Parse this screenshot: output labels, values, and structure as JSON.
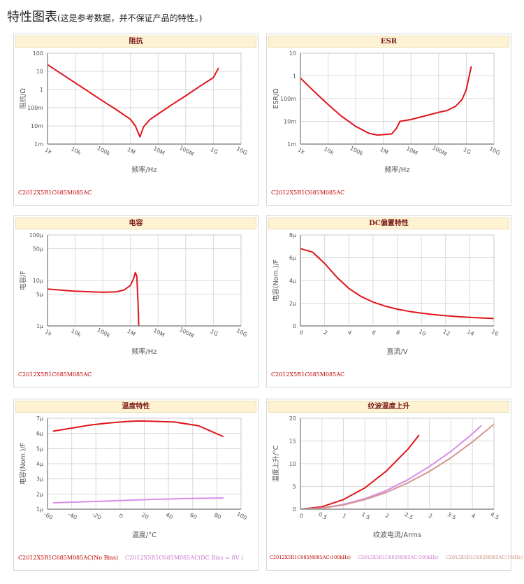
{
  "header": {
    "title": "特性图表",
    "subtitle": "(这是参考数据，并不保证产品的特性。)"
  },
  "colors": {
    "red": "#e0161c",
    "pink": "#d98ee6",
    "brown": "#d69590",
    "grid": "#d9d9d9",
    "header_bg": "#fdf2d2",
    "header_text": "#7a1a1a",
    "part_text": "#c00000"
  },
  "chart_data": [
    {
      "id": "impedance",
      "type": "line",
      "title": "阻抗",
      "xlabel": "频率/Hz",
      "ylabel": "阻抗/Ω",
      "xscale": "log",
      "yscale": "log",
      "xlim": [
        1000,
        10000000000
      ],
      "ylim": [
        0.001,
        100
      ],
      "xticks": [
        1000,
        10000,
        100000,
        1000000,
        10000000,
        100000000,
        1000000000,
        10000000000
      ],
      "xticklabels": [
        "1k",
        "10k",
        "100k",
        "1M",
        "10M",
        "100M",
        "1G",
        "10G"
      ],
      "yticks": [
        0.001,
        0.01,
        0.1,
        1,
        10,
        100
      ],
      "yticklabels": [
        "1m",
        "10m",
        "100m",
        "1",
        "10",
        "100"
      ],
      "grid": true,
      "legend": [
        {
          "label": "C2012X5R1C685M085AC",
          "color": "#c00000"
        }
      ],
      "series": [
        {
          "color": "#e0161c",
          "x": [
            1000,
            3000,
            10000,
            30000,
            100000,
            300000,
            1000000,
            1500000,
            2200000,
            3000000,
            5000000,
            10000000,
            30000000,
            100000000,
            300000000,
            1000000000,
            1500000000
          ],
          "y": [
            23.5,
            7.8,
            2.35,
            0.78,
            0.235,
            0.08,
            0.023,
            0.01,
            0.0025,
            0.009,
            0.022,
            0.045,
            0.14,
            0.45,
            1.4,
            4.5,
            14.5
          ]
        }
      ]
    },
    {
      "id": "esr",
      "type": "line",
      "title": "ESR",
      "xlabel": "频率/Hz",
      "ylabel": "ESR/Ω",
      "xscale": "log",
      "yscale": "log",
      "xlim": [
        1000,
        10000000000
      ],
      "ylim": [
        0.001,
        10
      ],
      "xticks": [
        1000,
        10000,
        100000,
        1000000,
        10000000,
        100000000,
        1000000000,
        10000000000
      ],
      "xticklabels": [
        "1k",
        "10k",
        "100k",
        "1M",
        "10M",
        "100M",
        "1G",
        "10G"
      ],
      "yticks": [
        0.001,
        0.01,
        0.1,
        1,
        10
      ],
      "yticklabels": [
        "1m",
        "10m",
        "100m",
        "1",
        "10"
      ],
      "grid": true,
      "legend": [
        {
          "label": "C2012X5R1C685M085AC",
          "color": "#c00000"
        }
      ],
      "series": [
        {
          "color": "#e0161c",
          "x": [
            1000,
            2000,
            5000,
            10000,
            30000,
            100000,
            300000,
            600000,
            1000000,
            2000000,
            3000000,
            4000000,
            10000000,
            30000000,
            100000000,
            200000000,
            400000000,
            700000000,
            1000000000,
            1500000000
          ],
          "y": [
            0.8,
            0.35,
            0.12,
            0.055,
            0.017,
            0.006,
            0.003,
            0.0025,
            0.0026,
            0.0028,
            0.005,
            0.01,
            0.012,
            0.017,
            0.025,
            0.03,
            0.045,
            0.09,
            0.25,
            2.5
          ]
        }
      ]
    },
    {
      "id": "capacitance",
      "type": "line",
      "title": "电容",
      "xlabel": "频率/Hz",
      "ylabel": "电容/F",
      "xscale": "log",
      "yscale": "log",
      "xlim": [
        1000,
        10000000000
      ],
      "ylim": [
        1e-06,
        0.0001
      ],
      "xticks": [
        1000,
        10000,
        100000,
        1000000,
        10000000,
        100000000,
        1000000000,
        10000000000
      ],
      "xticklabels": [
        "1k",
        "10k",
        "100k",
        "1M",
        "10M",
        "100M",
        "1G",
        "10G"
      ],
      "yticks": [
        1e-06,
        5e-06,
        1e-05,
        5e-05,
        0.0001
      ],
      "yticklabels": [
        "1μ",
        "5μ",
        "10μ",
        "50μ",
        "100μ"
      ],
      "grid": true,
      "legend": [
        {
          "label": "C2012X5R1C685M085AC",
          "color": "#c00000"
        }
      ],
      "series": [
        {
          "color": "#e0161c",
          "x": [
            1000,
            10000,
            100000,
            300000,
            600000,
            1000000,
            1300000,
            1500000,
            1700000,
            1900000,
            2000000
          ],
          "y": [
            6.5e-06,
            5.8e-06,
            5.5e-06,
            5.6e-06,
            6.2e-06,
            7.8e-06,
            1.1e-05,
            1.5e-05,
            1.25e-05,
            3e-06,
            1e-06
          ]
        }
      ]
    },
    {
      "id": "dc_bias",
      "type": "line",
      "title": "DC偏置特性",
      "xlabel": "直流/V",
      "ylabel": "电容(Nom.)/F",
      "xscale": "linear",
      "yscale": "linear",
      "xlim": [
        0,
        16
      ],
      "ylim": [
        0,
        8
      ],
      "xticks": [
        0,
        2,
        4,
        6,
        8,
        10,
        12,
        14,
        16
      ],
      "xticklabels": [
        "0",
        "2",
        "4",
        "6",
        "8",
        "10",
        "12",
        "14",
        "16"
      ],
      "yticks": [
        0,
        2,
        4,
        6,
        8
      ],
      "yticklabels": [
        "0",
        "2μ",
        "4μ",
        "6μ",
        "8μ"
      ],
      "grid": true,
      "legend": [
        {
          "label": "C2012X5R1C685M085AC",
          "color": "#c00000"
        }
      ],
      "series": [
        {
          "color": "#e0161c",
          "x": [
            0,
            1,
            2,
            3,
            4,
            5,
            6,
            7,
            8,
            9,
            10,
            11,
            12,
            13,
            14,
            15,
            16
          ],
          "y": [
            6.8,
            6.5,
            5.5,
            4.3,
            3.3,
            2.6,
            2.1,
            1.75,
            1.48,
            1.28,
            1.12,
            1.0,
            0.9,
            0.82,
            0.76,
            0.7,
            0.65
          ]
        }
      ]
    },
    {
      "id": "temperature",
      "type": "line",
      "title": "温度特性",
      "xlabel": "温度/°C",
      "ylabel": "电容(Nom.)/F",
      "xscale": "linear",
      "yscale": "linear",
      "xlim": [
        -60,
        100
      ],
      "ylim": [
        1,
        7
      ],
      "xticks": [
        -60,
        -40,
        -20,
        0,
        20,
        40,
        60,
        80,
        100
      ],
      "xticklabels": [
        "-60",
        "-40",
        "-20",
        "0",
        "20",
        "40",
        "60",
        "80",
        "100"
      ],
      "yticks": [
        1,
        2,
        3,
        4,
        5,
        6,
        7
      ],
      "yticklabels": [
        "1μ",
        "2μ",
        "3μ",
        "4μ",
        "5μ",
        "6μ",
        "7μ"
      ],
      "grid": true,
      "legend": [
        {
          "label": "C2012X5R1C685M085AC(No Bias)",
          "color": "#c00000"
        },
        {
          "label": "C2012X5R1C685M085AC(DC Bias = 8V )",
          "color": "#cc77cc"
        }
      ],
      "series": [
        {
          "name": "C2012X5R1C685M085AC(No Bias)",
          "color": "#e0161c",
          "x": [
            -55,
            -40,
            -25,
            -10,
            5,
            15,
            25,
            45,
            65,
            85
          ],
          "y": [
            6.15,
            6.35,
            6.55,
            6.68,
            6.78,
            6.82,
            6.8,
            6.75,
            6.5,
            5.8
          ]
        },
        {
          "name": "C2012X5R1C685M085AC(DC Bias = 8V )",
          "color": "#d98ee6",
          "x": [
            -55,
            -25,
            5,
            25,
            55,
            85
          ],
          "y": [
            1.42,
            1.5,
            1.58,
            1.64,
            1.7,
            1.74
          ]
        }
      ]
    },
    {
      "id": "ripple",
      "type": "line",
      "title": "纹波温度上升",
      "xlabel": "纹波电流/Arms",
      "ylabel": "温度上升/°C",
      "xscale": "linear",
      "yscale": "linear",
      "xlim": [
        0,
        4.5
      ],
      "ylim": [
        0,
        20
      ],
      "xticks": [
        0,
        0.5,
        1,
        1.5,
        2,
        2.5,
        3,
        3.5,
        4,
        4.5
      ],
      "xticklabels": [
        "0",
        "0.5",
        "1",
        "1.5",
        "2",
        "2.5",
        "3",
        "3.5",
        "4",
        "4.5"
      ],
      "yticks": [
        0,
        5,
        10,
        15,
        20
      ],
      "yticklabels": [
        "0",
        "5",
        "10",
        "15",
        "20"
      ],
      "grid": true,
      "legend": [
        {
          "label": "C2012X5R1C685M085AC(100kHz)",
          "color": "#c00000"
        },
        {
          "label": "C2012X5R1C685M085AC(500kHz)",
          "color": "#cc77cc"
        },
        {
          "label": "C2012X5R1C685M085AC(1MHz)",
          "color": "#c98a7a"
        }
      ],
      "series": [
        {
          "name": "C2012X5R1C685M085AC(100kHz)",
          "color": "#e0161c",
          "x": [
            0,
            0.5,
            1,
            1.5,
            2,
            2.5,
            2.75
          ],
          "y": [
            0,
            0.53,
            2.1,
            4.7,
            8.4,
            13.2,
            16.2
          ]
        },
        {
          "name": "C2012X5R1C685M085AC(500kHz)",
          "color": "#d98ee6",
          "x": [
            0,
            0.5,
            1,
            1.5,
            2,
            2.5,
            3,
            3.5,
            4,
            4.2
          ],
          "y": [
            0,
            0.26,
            1.04,
            2.3,
            4.1,
            6.5,
            9.4,
            12.7,
            16.6,
            18.3
          ]
        },
        {
          "name": "C2012X5R1C685M085AC(1MHz)",
          "color": "#d69590",
          "x": [
            0,
            0.5,
            1,
            1.5,
            2,
            2.5,
            3,
            3.5,
            4,
            4.5
          ],
          "y": [
            0,
            0.23,
            0.93,
            2.1,
            3.7,
            5.8,
            8.3,
            11.3,
            14.8,
            18.7
          ]
        }
      ]
    }
  ]
}
